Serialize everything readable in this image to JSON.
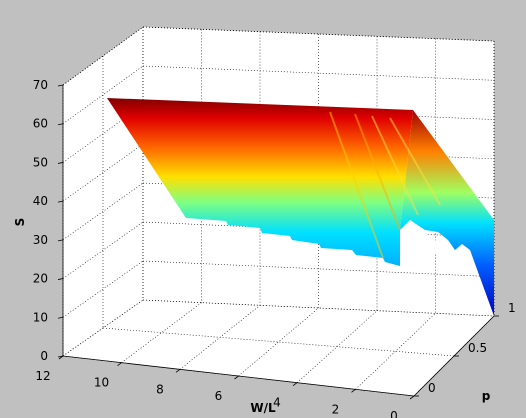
{
  "chart_data": {
    "type": "surface",
    "title": "",
    "xlabel": "W/L",
    "ylabel": "p",
    "zlabel": "S",
    "xlim": [
      0,
      12
    ],
    "ylim": [
      0,
      1
    ],
    "zlim": [
      0,
      70
    ],
    "x_ticks": [
      "12",
      "10",
      "8",
      "6",
      "4",
      "2",
      "0"
    ],
    "y_ticks": [
      "0",
      "0.5",
      "1"
    ],
    "z_ticks": [
      "0",
      "10",
      "20",
      "30",
      "40",
      "50",
      "60",
      "70"
    ],
    "grid": true,
    "colormap": "jet",
    "surface_top_S": 66,
    "surface_bottom_S": 5,
    "lower_edge_profile": [
      {
        "W/L": 11.0,
        "S": 36
      },
      {
        "W/L": 9.0,
        "S": 36
      },
      {
        "W/L": 7.6,
        "S": 35
      },
      {
        "W/L": 6.2,
        "S": 34
      },
      {
        "W/L": 4.8,
        "S": 32
      },
      {
        "W/L": 3.6,
        "S": 31
      },
      {
        "W/L": 2.2,
        "S": 29
      },
      {
        "W/L": 1.2,
        "S": 27
      },
      {
        "W/L": 0.6,
        "S": 26
      },
      {
        "W/L": 0.0,
        "S": 25
      }
    ]
  }
}
